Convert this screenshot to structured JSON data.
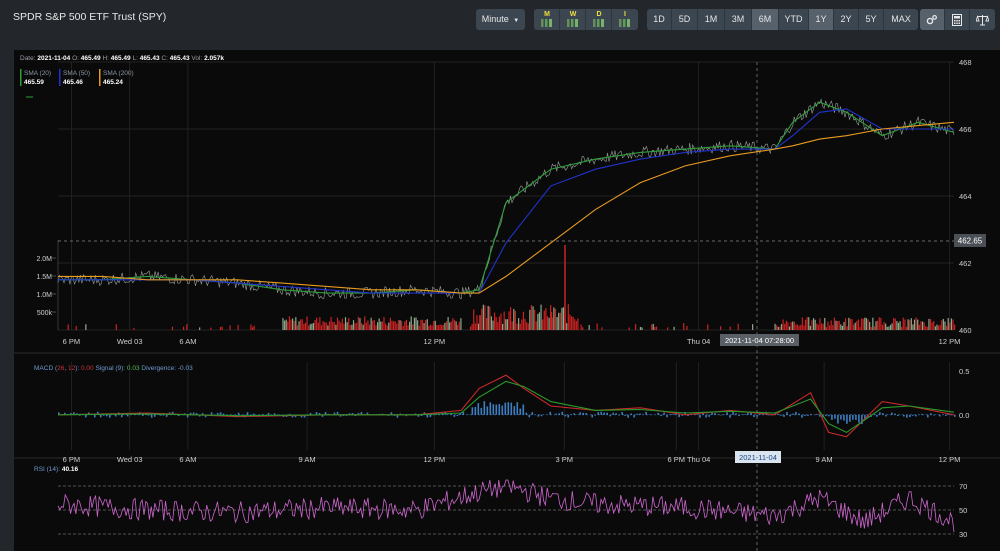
{
  "header": {
    "title": "SPDR S&P 500 ETF Trust (SPY)"
  },
  "toolbar": {
    "interval_label": "Minute",
    "period_types": [
      "M",
      "W",
      "D",
      "I"
    ],
    "ranges": [
      "1D",
      "5D",
      "1M",
      "3M",
      "6M",
      "YTD",
      "1Y",
      "2Y",
      "5Y",
      "MAX"
    ],
    "active_range": "6M",
    "icons": [
      "settings-icon",
      "calculator-icon",
      "scale-icon"
    ]
  },
  "colors": {
    "sma20": "#2e9e3a",
    "sma50": "#2233cc",
    "sma200": "#e89a20",
    "volume_up": "#cc2222",
    "rsi": "#cc66cc",
    "macd": "#c62a2a",
    "signal": "#2a9a2a",
    "divergence": "#3d7fc0"
  },
  "legend": {
    "date_label": "Date:",
    "date": "2021-11-04",
    "open_label": "O:",
    "open": "465.49",
    "high_label": "H:",
    "high": "465.49",
    "low_label": "L:",
    "low": "465.43",
    "close_label": "C:",
    "close": "465.43",
    "vol_label": "Vol:",
    "vol": "2.057k",
    "sma": [
      {
        "label": "SMA (20)",
        "value": "465.59"
      },
      {
        "label": "SMA (50)",
        "value": "465.46"
      },
      {
        "label": "SMA (200)",
        "value": "465.24"
      }
    ]
  },
  "crosshair": {
    "time_label": "2021-11-04 07:28:00",
    "date_label": "2021-11-04",
    "price_label": "462.65"
  },
  "macd_legend": {
    "prefix": "MACD (",
    "fast": "26",
    "sep": ", ",
    "slow": "12",
    "suffix": "):",
    "value": "0.00",
    "signal_label": "Signal (9):",
    "signal_value": "0.03",
    "divergence_label": "Divergence:",
    "divergence_value": "-0.03"
  },
  "rsi_legend": {
    "label": "RSI (14):",
    "value": "40.16"
  },
  "chart_data": [
    {
      "type": "line",
      "title": "",
      "y_ticks": [
        "468",
        "466",
        "464",
        "462",
        "460"
      ],
      "ylim": [
        460,
        468
      ],
      "volume_ticks": [
        "2.0M",
        "1.5M",
        "1.0M",
        "500k"
      ],
      "x_ticks": [
        "6 PM",
        "Wed 03",
        "6 AM",
        "12 PM",
        "Thu 04",
        "12 PM"
      ],
      "series": [
        {
          "name": "SMA (20)",
          "x": [
            0,
            0.05,
            0.1,
            0.15,
            0.2,
            0.25,
            0.3,
            0.35,
            0.4,
            0.45,
            0.47,
            0.5,
            0.55,
            0.6,
            0.65,
            0.7,
            0.75,
            0.8,
            0.82,
            0.85,
            0.88,
            0.92,
            0.96,
            1.0
          ],
          "values": [
            461.5,
            461.5,
            461.6,
            461.5,
            461.4,
            461.2,
            461.1,
            461.1,
            461.2,
            461.1,
            461.2,
            463.8,
            464.8,
            465.1,
            465.3,
            465.4,
            465.5,
            465.4,
            466.2,
            466.8,
            466.5,
            465.8,
            466.2,
            465.9
          ]
        },
        {
          "name": "SMA (50)",
          "x": [
            0,
            0.05,
            0.1,
            0.15,
            0.2,
            0.25,
            0.3,
            0.35,
            0.4,
            0.45,
            0.47,
            0.5,
            0.55,
            0.6,
            0.65,
            0.7,
            0.75,
            0.8,
            0.82,
            0.85,
            0.88,
            0.92,
            0.96,
            1.0
          ],
          "values": [
            461.5,
            461.5,
            461.5,
            461.5,
            461.4,
            461.3,
            461.2,
            461.1,
            461.1,
            461.1,
            461.1,
            462.6,
            464.3,
            464.8,
            465.1,
            465.3,
            465.4,
            465.4,
            465.8,
            466.5,
            466.6,
            466.0,
            466.0,
            466.0
          ]
        },
        {
          "name": "SMA (200)",
          "x": [
            0,
            0.05,
            0.1,
            0.15,
            0.2,
            0.25,
            0.3,
            0.35,
            0.4,
            0.45,
            0.47,
            0.5,
            0.55,
            0.6,
            0.65,
            0.7,
            0.75,
            0.8,
            0.82,
            0.85,
            0.88,
            0.92,
            0.96,
            1.0
          ],
          "values": [
            461.6,
            461.6,
            461.5,
            461.5,
            461.5,
            461.4,
            461.3,
            461.2,
            461.2,
            461.1,
            461.1,
            461.6,
            462.6,
            463.6,
            464.4,
            464.9,
            465.2,
            465.4,
            465.5,
            465.7,
            465.8,
            466.0,
            466.1,
            466.2
          ]
        }
      ]
    },
    {
      "type": "line",
      "title": "",
      "y_ticks": [
        "0.5",
        "0.0"
      ],
      "ylim": [
        -0.4,
        0.6
      ],
      "x_ticks": [
        "6 PM",
        "Wed 03",
        "6 AM",
        "9 AM",
        "12 PM",
        "3 PM",
        "6 PM",
        "Thu 04",
        "9 AM",
        "12 PM"
      ],
      "series": [
        {
          "name": "MACD",
          "x": [
            0,
            0.1,
            0.2,
            0.3,
            0.4,
            0.45,
            0.47,
            0.5,
            0.52,
            0.55,
            0.6,
            0.65,
            0.7,
            0.75,
            0.8,
            0.84,
            0.86,
            0.88,
            0.92,
            0.95,
            1.0
          ],
          "values": [
            0.0,
            0.02,
            -0.02,
            0.0,
            0.0,
            0.05,
            0.3,
            0.45,
            0.3,
            0.1,
            0.05,
            0.08,
            0.0,
            0.05,
            0.0,
            0.25,
            -0.2,
            -0.25,
            0.15,
            0.1,
            0.0
          ]
        },
        {
          "name": "Signal",
          "x": [
            0,
            0.1,
            0.2,
            0.3,
            0.4,
            0.45,
            0.47,
            0.5,
            0.52,
            0.55,
            0.6,
            0.65,
            0.7,
            0.75,
            0.8,
            0.84,
            0.86,
            0.88,
            0.92,
            0.95,
            1.0
          ],
          "values": [
            0.0,
            0.01,
            -0.01,
            0.0,
            0.0,
            0.02,
            0.2,
            0.38,
            0.32,
            0.15,
            0.05,
            0.06,
            0.02,
            0.04,
            0.02,
            0.18,
            -0.1,
            -0.2,
            0.08,
            0.1,
            0.03
          ]
        }
      ]
    },
    {
      "type": "line",
      "title": "",
      "y_ticks": [
        "70",
        "50",
        "30"
      ],
      "ylim": [
        25,
        75
      ],
      "series": [
        {
          "name": "RSI (14)",
          "x": [
            0,
            0.1,
            0.2,
            0.3,
            0.4,
            0.47,
            0.5,
            0.55,
            0.6,
            0.7,
            0.8,
            0.85,
            0.9,
            0.95,
            1.0
          ],
          "values": [
            55,
            50,
            48,
            52,
            50,
            65,
            70,
            60,
            55,
            52,
            45,
            60,
            40,
            60,
            40.16
          ]
        }
      ]
    }
  ]
}
